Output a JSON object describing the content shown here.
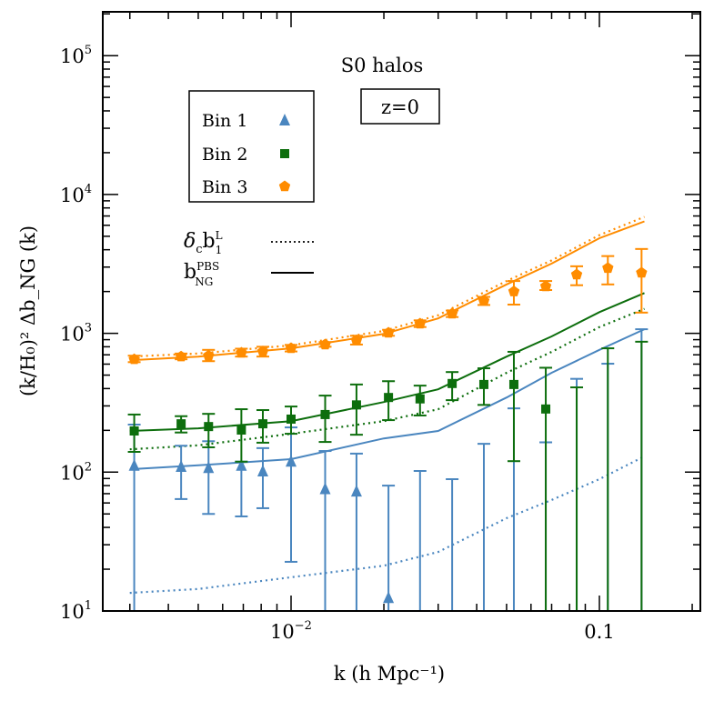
{
  "chart_data": {
    "type": "scatter",
    "title": "S0 halos",
    "annotation": "z=0",
    "xlabel": "k (h Mpc⁻¹)",
    "ylabel": "(k/H₀)² Δb_NG (k)",
    "xscale": "log",
    "yscale": "log",
    "xlim": [
      0.00245,
      0.212
    ],
    "ylim": [
      10,
      150000
    ],
    "x_tick_labels": [
      {
        "value": 0.01,
        "base": "10",
        "exp": "−2"
      },
      {
        "value": 0.1,
        "base": "0.1",
        "exp": ""
      }
    ],
    "y_tick_labels": [
      {
        "value": 10,
        "base": "10",
        "exp": "1"
      },
      {
        "value": 100,
        "base": "10",
        "exp": "2"
      },
      {
        "value": 1000,
        "base": "10",
        "exp": "3"
      },
      {
        "value": 10000,
        "base": "10",
        "exp": "4"
      },
      {
        "value": 100000,
        "base": "10",
        "exp": "5"
      }
    ],
    "grid": false,
    "legend_placement": "top-left",
    "series": [
      {
        "name": "Bin 1",
        "color": "#4a86bf",
        "marker": "triangle",
        "points": [
          {
            "k": 0.0031,
            "y": 112,
            "err": [
              null,
              220
            ]
          },
          {
            "k": 0.0044,
            "y": 110,
            "err": [
              64,
              155
            ]
          },
          {
            "k": 0.0054,
            "y": 108,
            "err": [
              50,
              167
            ]
          },
          {
            "k": 0.0069,
            "y": 112,
            "err": [
              48,
              119
            ]
          },
          {
            "k": 0.0081,
            "y": 102,
            "err": [
              55,
              149
            ]
          },
          {
            "k": 0.01,
            "y": 120,
            "err": [
              22.6,
              210
            ]
          },
          {
            "k": 0.0129,
            "y": 76,
            "err": [
              null,
              142
            ]
          },
          {
            "k": 0.0163,
            "y": 73,
            "err": [
              null,
              136
            ]
          },
          {
            "k": 0.0207,
            "y": 12.5,
            "err": [
              null,
              80
            ]
          },
          {
            "k": 0.0262,
            "y": null,
            "err": [
              null,
              102
            ]
          },
          {
            "k": 0.0333,
            "y": null,
            "err": [
              null,
              89
            ]
          },
          {
            "k": 0.0422,
            "y": null,
            "err": [
              null,
              160
            ]
          },
          {
            "k": 0.0528,
            "y": null,
            "err": [
              null,
              288
            ]
          },
          {
            "k": 0.067,
            "y": null,
            "err": [
              null,
              164
            ]
          },
          {
            "k": 0.0844,
            "y": null,
            "err": [
              null,
              470
            ]
          },
          {
            "k": 0.1065,
            "y": null,
            "err": [
              null,
              604
            ]
          },
          {
            "k": 0.137,
            "y": null,
            "err": [
              null,
              1070
            ]
          }
        ]
      },
      {
        "name": "Bin 2",
        "color": "#0d6e0d",
        "marker": "square",
        "points": [
          {
            "k": 0.0031,
            "y": 198,
            "err": [
              140,
              260
            ]
          },
          {
            "k": 0.0044,
            "y": 223,
            "err": [
              193,
              253
            ]
          },
          {
            "k": 0.0054,
            "y": 213,
            "err": [
              151,
              263
            ]
          },
          {
            "k": 0.0069,
            "y": 201,
            "err": [
              119,
              284
            ]
          },
          {
            "k": 0.0081,
            "y": 223,
            "err": [
              163,
              280
            ]
          },
          {
            "k": 0.01,
            "y": 241,
            "err": [
              189,
              297
            ]
          },
          {
            "k": 0.0129,
            "y": 260,
            "err": [
              165,
              356
            ]
          },
          {
            "k": 0.0163,
            "y": 305,
            "err": [
              186,
              428
            ]
          },
          {
            "k": 0.0207,
            "y": 345,
            "err": [
              237,
              452
            ]
          },
          {
            "k": 0.0262,
            "y": 337,
            "err": [
              256,
              420
            ]
          },
          {
            "k": 0.0333,
            "y": 435,
            "err": [
              330,
              526
            ]
          },
          {
            "k": 0.0422,
            "y": 428,
            "err": [
              305,
              560
            ]
          },
          {
            "k": 0.0528,
            "y": 428,
            "err": [
              120,
              736
            ]
          },
          {
            "k": 0.067,
            "y": 285,
            "err": [
              null,
              565
            ]
          },
          {
            "k": 0.0844,
            "y": null,
            "err": [
              null,
              408
            ]
          },
          {
            "k": 0.1065,
            "y": null,
            "err": [
              null,
              780
            ]
          },
          {
            "k": 0.137,
            "y": null,
            "err": [
              null,
              870
            ]
          }
        ]
      },
      {
        "name": "Bin 3",
        "color": "#ff8c00",
        "marker": "pentagon",
        "points": [
          {
            "k": 0.0031,
            "y": 650,
            "err": [
              620,
              690
            ]
          },
          {
            "k": 0.0044,
            "y": 680,
            "err": [
              650,
              715
            ]
          },
          {
            "k": 0.0054,
            "y": 690,
            "err": [
              630,
              760
            ]
          },
          {
            "k": 0.0069,
            "y": 724,
            "err": [
              680,
              775
            ]
          },
          {
            "k": 0.0081,
            "y": 740,
            "err": [
              680,
              800
            ]
          },
          {
            "k": 0.01,
            "y": 781,
            "err": [
              740,
              825
            ]
          },
          {
            "k": 0.0129,
            "y": 830,
            "err": [
              800,
              865
            ]
          },
          {
            "k": 0.0163,
            "y": 890,
            "err": [
              830,
              960
            ]
          },
          {
            "k": 0.0207,
            "y": 1009,
            "err": [
              960,
              1060
            ]
          },
          {
            "k": 0.0262,
            "y": 1173,
            "err": [
              1110,
              1240
            ]
          },
          {
            "k": 0.0333,
            "y": 1384,
            "err": [
              1310,
              1460
            ]
          },
          {
            "k": 0.0422,
            "y": 1710,
            "err": [
              1600,
              1830
            ]
          },
          {
            "k": 0.0528,
            "y": 2000,
            "err": [
              1610,
              2380
            ]
          },
          {
            "k": 0.067,
            "y": 2180,
            "err": [
              2050,
              2380
            ]
          },
          {
            "k": 0.0844,
            "y": 2650,
            "err": [
              2220,
              3040
            ]
          },
          {
            "k": 0.1065,
            "y": 2950,
            "err": [
              2250,
              3600
            ]
          },
          {
            "k": 0.137,
            "y": 2730,
            "err": [
              1410,
              4050
            ]
          }
        ]
      }
    ],
    "model_curves": {
      "k": [
        0.003,
        0.005,
        0.01,
        0.02,
        0.03,
        0.05,
        0.07,
        0.1,
        0.14
      ],
      "legend": [
        {
          "label_main": "δ",
          "sub1": "c",
          "mid": "b",
          "sup": "L",
          "sub2": "1",
          "style": "dotted"
        },
        {
          "label_main": "",
          "sub1": "",
          "mid": "b",
          "sup": "PBS",
          "sub2": "NG",
          "style": "solid"
        }
      ],
      "curves": [
        {
          "bin": "Bin 1",
          "style": "solid",
          "color": "#4a86bf",
          "values": [
            105,
            112,
            124,
            175,
            198,
            345,
            520,
            760,
            1070
          ]
        },
        {
          "bin": "Bin 1",
          "style": "dotted",
          "color": "#4a86bf",
          "values": [
            13.5,
            14.4,
            17.5,
            21.2,
            26.6,
            46.6,
            63,
            89,
            130
          ]
        },
        {
          "bin": "Bin 2",
          "style": "solid",
          "color": "#0d6e0d",
          "values": [
            198,
            207,
            233,
            320,
            395,
            680,
            950,
            1420,
            1950
          ]
        },
        {
          "bin": "Bin 2",
          "style": "dotted",
          "color": "#0d6e0d",
          "values": [
            146,
            156,
            189,
            233,
            284,
            520,
            735,
            1110,
            1500
          ]
        },
        {
          "bin": "Bin 3",
          "style": "solid",
          "color": "#ff8c00",
          "values": [
            640,
            680,
            780,
            990,
            1280,
            2250,
            3180,
            4840,
            6400
          ]
        },
        {
          "bin": "Bin 3",
          "style": "dotted",
          "color": "#ff8c00",
          "values": [
            680,
            715,
            820,
            1040,
            1350,
            2380,
            3350,
            5100,
            6900
          ]
        }
      ]
    }
  }
}
